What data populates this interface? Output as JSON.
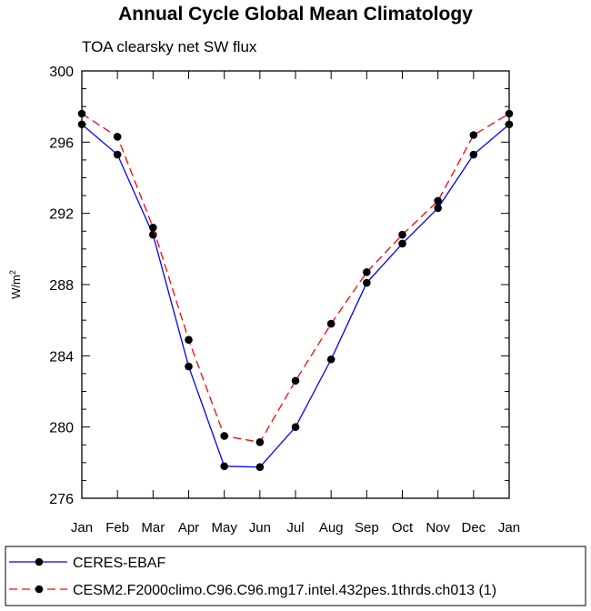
{
  "chart_data": {
    "type": "line",
    "title": "Annual Cycle Global Mean Climatology",
    "subtitle": "TOA clearsky net SW flux",
    "xlabel": "",
    "ylabel_base": "W/m",
    "ylabel_sup": "2",
    "categories": [
      "Jan",
      "Feb",
      "Mar",
      "Apr",
      "May",
      "Jun",
      "Jul",
      "Aug",
      "Sep",
      "Oct",
      "Nov",
      "Dec",
      "Jan"
    ],
    "ylim": [
      276,
      300
    ],
    "yticks": [
      276,
      280,
      284,
      288,
      292,
      296,
      300
    ],
    "yminor_step": 1,
    "grid": false,
    "legend_position": "bottom",
    "series": [
      {
        "name": "CERES-EBAF",
        "color": "#0000ff",
        "dash": "solid",
        "marker": "filled-circle",
        "values": [
          297.0,
          295.3,
          290.8,
          283.4,
          277.8,
          277.75,
          280.0,
          283.8,
          288.1,
          290.3,
          292.3,
          295.3,
          297.0
        ]
      },
      {
        "name": "CESM2.F2000climo.C96.C96.mg17.intel.432pes.1thrds.ch013 (1)",
        "color": "#ff0000",
        "dash": "dashed",
        "marker": "filled-circle",
        "values": [
          297.6,
          296.3,
          291.2,
          284.9,
          279.5,
          279.15,
          282.6,
          285.8,
          288.7,
          290.8,
          292.7,
          296.4,
          297.6
        ]
      }
    ]
  }
}
